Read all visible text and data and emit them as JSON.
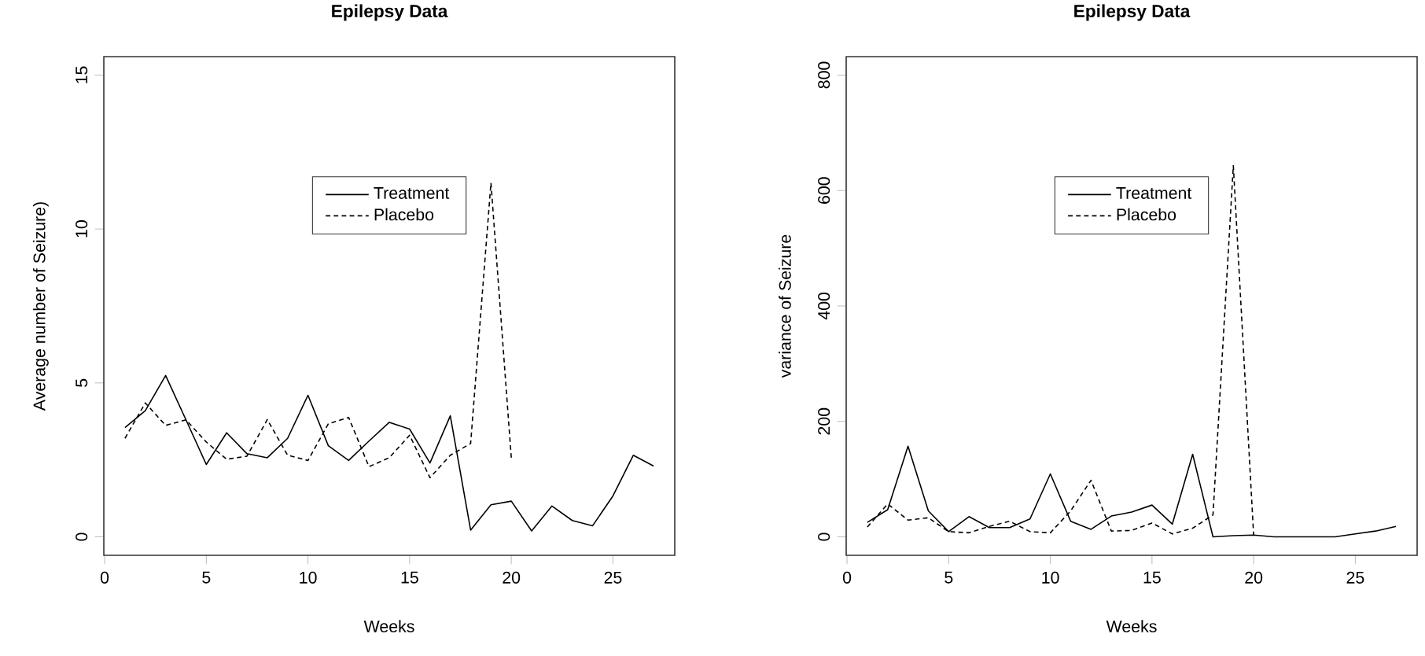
{
  "chart_data": [
    {
      "type": "line",
      "title": "Epilepsy Data",
      "xlabel": "Weeks",
      "ylabel": "Average number of Seizure)",
      "x": [
        1,
        2,
        3,
        4,
        5,
        6,
        7,
        8,
        9,
        10,
        11,
        12,
        13,
        14,
        15,
        16,
        17,
        18,
        19,
        20,
        21,
        22,
        23,
        24,
        25,
        26,
        27
      ],
      "series": [
        {
          "name": "Treatment",
          "color": "#000000",
          "line_style": "solid",
          "values": [
            3.55,
            4.1,
            5.24,
            3.8,
            2.35,
            3.38,
            2.7,
            2.57,
            3.2,
            4.6,
            2.96,
            2.48,
            3.11,
            3.72,
            3.5,
            2.4,
            3.93,
            0.22,
            1.04,
            1.16,
            0.19,
            1.0,
            0.53,
            0.36,
            1.33,
            2.65,
            2.3
          ]
        },
        {
          "name": "Placebo",
          "color": "#000000",
          "line_style": "dashed",
          "x": [
            1,
            2,
            3,
            4,
            5,
            6,
            7,
            8,
            9,
            10,
            11,
            12,
            13,
            14,
            15,
            16,
            17,
            18,
            19,
            20
          ],
          "values": [
            3.2,
            4.35,
            3.62,
            3.8,
            3.08,
            2.52,
            2.62,
            3.81,
            2.65,
            2.48,
            3.67,
            3.88,
            2.28,
            2.57,
            3.3,
            1.92,
            2.65,
            3.03,
            11.5,
            2.57
          ]
        }
      ],
      "xlim": [
        -0.04,
        28.04
      ],
      "ylim": [
        -0.6,
        15.6
      ],
      "xticks": [
        0,
        5,
        10,
        15,
        20,
        25
      ],
      "yticks": [
        0,
        5,
        10,
        15
      ],
      "legend": "top"
    },
    {
      "type": "line",
      "title": "Epilepsy Data",
      "xlabel": "Weeks",
      "ylabel": "variance of Seizure",
      "x": [
        1,
        2,
        3,
        4,
        5,
        6,
        7,
        8,
        9,
        10,
        11,
        12,
        13,
        14,
        15,
        16,
        17,
        18,
        19,
        20,
        21,
        22,
        23,
        24,
        25,
        26,
        27
      ],
      "series": [
        {
          "name": "Treatment",
          "color": "#000000",
          "line_style": "solid",
          "values": [
            25,
            47,
            157,
            45,
            9,
            35,
            16,
            16,
            31,
            109,
            27,
            13,
            36,
            43,
            55,
            22,
            143,
            0,
            2,
            3,
            0,
            0,
            0,
            0,
            5,
            10,
            18
          ]
        },
        {
          "name": "Placebo",
          "color": "#000000",
          "line_style": "dashed",
          "x": [
            1,
            2,
            3,
            4,
            5,
            6,
            7,
            8,
            9,
            10,
            11,
            12,
            13,
            14,
            15,
            16,
            17,
            18,
            19,
            20
          ],
          "values": [
            17,
            57,
            29,
            33,
            9,
            7,
            18,
            27,
            9,
            7,
            45,
            98,
            10,
            11,
            24,
            5,
            15,
            38,
            643,
            2
          ]
        }
      ],
      "xlim": [
        -0.04,
        28.04
      ],
      "ylim": [
        -32,
        832
      ],
      "xticks": [
        0,
        5,
        10,
        15,
        20,
        25
      ],
      "yticks": [
        0,
        200,
        400,
        600,
        800
      ],
      "legend": "top"
    }
  ]
}
